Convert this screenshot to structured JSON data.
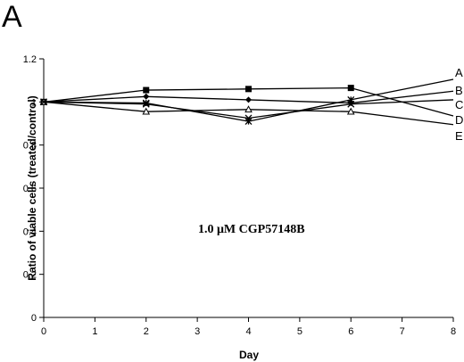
{
  "panel_label": "A",
  "chart_data": {
    "type": "line",
    "title": "",
    "xlabel": "Day",
    "ylabel": "Ratio of viable cells (treated/control)",
    "annotation": "1.0 μM CGP57148B",
    "xlim": [
      0,
      8
    ],
    "ylim": [
      0,
      1.2
    ],
    "x_ticks": [
      0,
      1,
      2,
      3,
      4,
      5,
      6,
      7,
      8
    ],
    "y_ticks": [
      0,
      0.2,
      0.4,
      0.6,
      0.8,
      1,
      1.2
    ],
    "grid": false,
    "x": [
      0,
      2,
      4,
      6,
      8
    ],
    "series": [
      {
        "name": "A",
        "marker": "square",
        "values": [
          1.0,
          1.055,
          1.06,
          1.065,
          0.935
        ]
      },
      {
        "name": "B",
        "marker": "diamond",
        "values": [
          1.0,
          1.025,
          1.01,
          0.995,
          1.05
        ]
      },
      {
        "name": "C",
        "marker": "star",
        "values": [
          1.0,
          0.995,
          0.91,
          1.01,
          1.105
        ]
      },
      {
        "name": "D",
        "marker": "triangle",
        "values": [
          1.0,
          0.955,
          0.965,
          0.955,
          0.895
        ]
      },
      {
        "name": "E",
        "marker": "cross",
        "values": [
          1.0,
          0.99,
          0.925,
          0.99,
          1.01
        ]
      }
    ]
  }
}
